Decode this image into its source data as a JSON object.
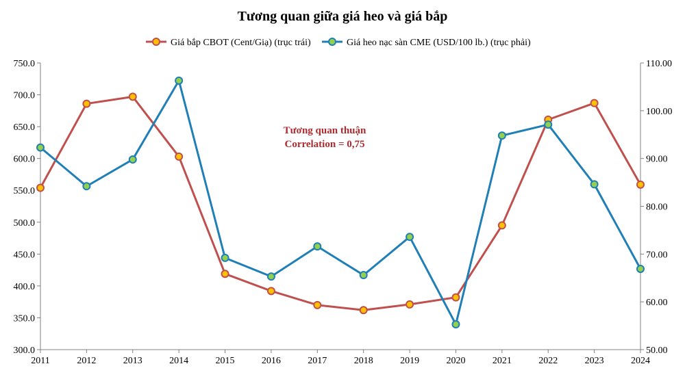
{
  "chart_data": {
    "type": "line",
    "title": "Tương quan giữa giá heo và giá bắp",
    "x": [
      "2011",
      "2012",
      "2013",
      "2014",
      "2015",
      "2016",
      "2017",
      "2018",
      "2019",
      "2020",
      "2021",
      "2022",
      "2023",
      "2024"
    ],
    "series": [
      {
        "name": "Giá bắp CBOT (Cent/Giạ) (trục trái)",
        "axis": "left",
        "color": "#c0504d",
        "marker_color": "#ffc000",
        "values": [
          554,
          686,
          697,
          603,
          419,
          392,
          370,
          362,
          371,
          382,
          495,
          661,
          687,
          559
        ]
      },
      {
        "name": "Giá heo nạc sàn CME (USD/100 lb.) (trục phải)",
        "axis": "right",
        "color": "#1f7fb6",
        "marker_color": "#92d050",
        "values": [
          92.3,
          84.2,
          89.8,
          106.3,
          69.2,
          65.3,
          71.6,
          65.6,
          73.6,
          55.3,
          94.8,
          97.1,
          84.6,
          66.9
        ]
      }
    ],
    "y_left": {
      "ylim": [
        300,
        750
      ],
      "ticks": [
        "300.0",
        "350.0",
        "400.0",
        "450.0",
        "500.0",
        "550.0",
        "600.0",
        "650.0",
        "700.0",
        "750.0"
      ]
    },
    "y_right": {
      "ylim": [
        50,
        110
      ],
      "ticks": [
        "50.00",
        "60.00",
        "70.00",
        "80.00",
        "90.00",
        "100.00",
        "110.00"
      ]
    },
    "annotation": {
      "line1": "Tương quan thuận",
      "line2": "Correlation = 0,75",
      "color": "#b02a2e"
    },
    "legend_position": "top-center",
    "grid": false
  }
}
